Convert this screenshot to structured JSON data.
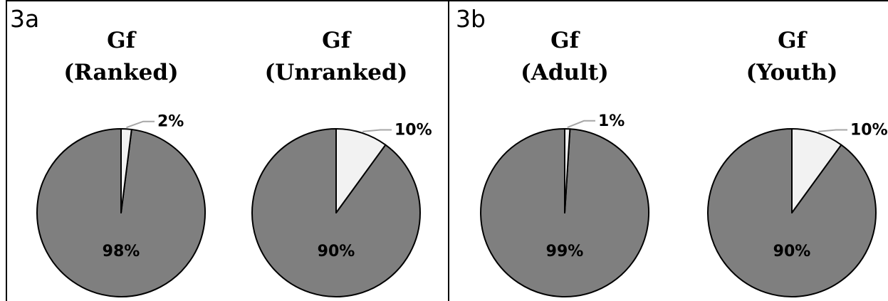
{
  "panels": [
    {
      "label": "3a"
    },
    {
      "label": "3b"
    }
  ],
  "colors": {
    "major_slice": "#7f7f7f",
    "minor_slice": "#f2f2f2",
    "slice_outline": "#000000",
    "leader_line": "#a6a6a6",
    "frame": "#000000"
  },
  "chart_data": [
    {
      "type": "pie",
      "panel": "3a",
      "title": [
        "Gf",
        "(Ranked)"
      ],
      "slices": [
        {
          "value": 2,
          "label": "2%"
        },
        {
          "value": 98,
          "label": "98%"
        }
      ]
    },
    {
      "type": "pie",
      "panel": "3a",
      "title": [
        "Gf",
        "(Unranked)"
      ],
      "slices": [
        {
          "value": 10,
          "label": "10%"
        },
        {
          "value": 90,
          "label": "90%"
        }
      ]
    },
    {
      "type": "pie",
      "panel": "3b",
      "title": [
        "Gf",
        "(Adult)"
      ],
      "slices": [
        {
          "value": 1,
          "label": "1%"
        },
        {
          "value": 99,
          "label": "99%"
        }
      ]
    },
    {
      "type": "pie",
      "panel": "3b",
      "title": [
        "Gf",
        "(Youth)"
      ],
      "slices": [
        {
          "value": 10,
          "label": "10%"
        },
        {
          "value": 90,
          "label": "90%"
        }
      ]
    }
  ]
}
